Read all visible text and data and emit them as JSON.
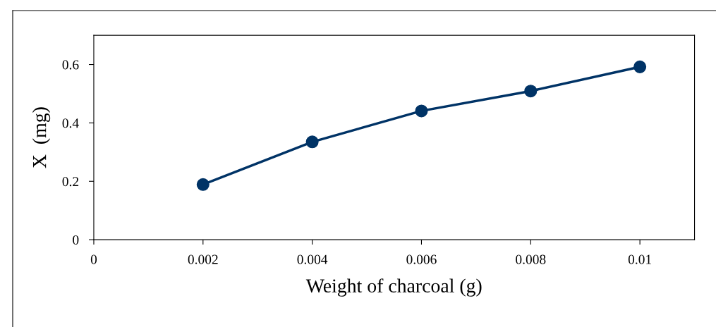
{
  "chart_data": {
    "type": "line",
    "xlabel": "Weight of charcoal (g)",
    "ylabel": "X  (mg)",
    "x": [
      0.002,
      0.004,
      0.006,
      0.008,
      0.01
    ],
    "series": [
      {
        "color": "#003366",
        "values": [
          0.189,
          0.335,
          0.441,
          0.509,
          0.592
        ]
      }
    ],
    "xlim": [
      0,
      0.011
    ],
    "xticks": [
      0,
      0.002,
      0.004,
      0.006,
      0.008,
      0.01
    ],
    "ylim": [
      0,
      0.7
    ],
    "yticks": [
      0,
      0.2,
      0.4,
      0.6
    ],
    "grid": false,
    "legend": false,
    "marker": "circle",
    "line_style": "solid"
  }
}
